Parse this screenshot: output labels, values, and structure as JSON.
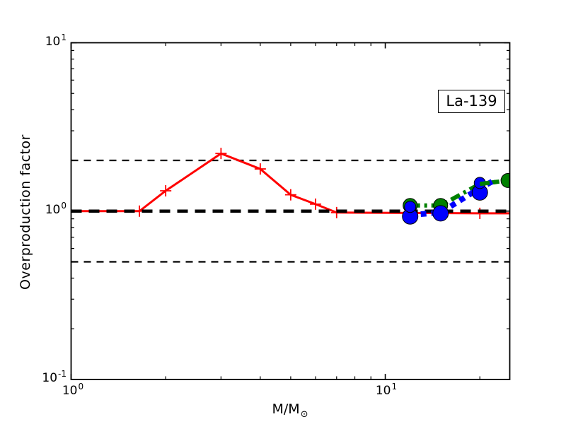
{
  "figure": {
    "background": "#ffffff"
  },
  "legend": {
    "label": "La-139"
  },
  "axes": {
    "x": {
      "label_main": "M/M",
      "label_sub": "⊙",
      "ticks": [
        {
          "base": "10",
          "exp": "0"
        },
        {
          "base": "10",
          "exp": "1"
        }
      ]
    },
    "y": {
      "label": "Overproduction factor",
      "ticks": [
        {
          "base": "10",
          "exp": "1"
        },
        {
          "base": "10",
          "exp": "0"
        },
        {
          "base": "10",
          "exp": "-1"
        }
      ]
    }
  },
  "chart_data": {
    "type": "line",
    "title": "",
    "xlabel": "M/M_sun",
    "ylabel": "Overproduction factor",
    "xscale": "log",
    "yscale": "log",
    "xlim": [
      1,
      24.9
    ],
    "ylim": [
      0.1,
      10
    ],
    "grid": false,
    "annotation": "La-139",
    "annotation_position": "top-right",
    "reference_lines": [
      {
        "y": 1.0,
        "color": "#000000",
        "style": "dashed-thick"
      },
      {
        "y": 2.0,
        "color": "#000000",
        "style": "dashed-thin"
      },
      {
        "y": 0.5,
        "color": "#000000",
        "style": "dashed-thin"
      }
    ],
    "series": [
      {
        "name": "red-solid-plus",
        "color": "#ff0000",
        "linestyle": "solid",
        "marker": "plus",
        "line": [
          [
            1.0,
            1.0
          ],
          [
            1.65,
            1.0
          ],
          [
            2,
            1.32
          ],
          [
            3,
            2.2
          ],
          [
            4,
            1.78
          ],
          [
            5,
            1.25
          ],
          [
            6,
            1.1
          ],
          [
            7,
            0.98
          ],
          [
            20,
            0.97
          ],
          [
            24.9,
            0.97
          ]
        ],
        "markers": [
          [
            1.65,
            1.0
          ],
          [
            2,
            1.32
          ],
          [
            3,
            2.2
          ],
          [
            4,
            1.78
          ],
          [
            5,
            1.25
          ],
          [
            6,
            1.1
          ],
          [
            7,
            0.98
          ],
          [
            20,
            0.97
          ]
        ],
        "marker_sizes": [
          8,
          8,
          8,
          8,
          8,
          8,
          8,
          8
        ]
      },
      {
        "name": "green-dashdot-circle",
        "color": "#008000",
        "linestyle": "dashdot",
        "marker": "circle",
        "line": [
          [
            12,
            1.08
          ],
          [
            15,
            1.08
          ],
          [
            20,
            1.45
          ],
          [
            24.6,
            1.52
          ]
        ],
        "markers": [
          [
            12,
            1.08
          ],
          [
            15,
            1.08
          ],
          [
            24.6,
            1.52
          ]
        ],
        "marker_sizes": [
          10,
          10,
          10
        ]
      },
      {
        "name": "blue-dotted-circle",
        "color": "#0000ff",
        "linestyle": "dotted",
        "marker": "circle",
        "line": [
          [
            12,
            0.95
          ],
          [
            15,
            0.98
          ],
          [
            20,
            1.37
          ],
          [
            22.5,
            1.54
          ]
        ],
        "markers": [
          [
            12,
            0.93
          ],
          [
            12,
            1.06
          ],
          [
            15,
            0.97
          ],
          [
            20,
            1.29
          ],
          [
            20,
            1.47
          ]
        ],
        "marker_sizes": [
          11,
          8,
          11,
          11,
          8
        ]
      }
    ]
  }
}
